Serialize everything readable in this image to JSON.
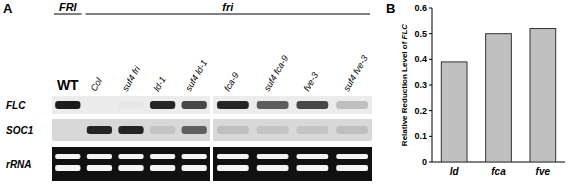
{
  "panel_a": {
    "label": "A",
    "groups": [
      {
        "label": "FRI",
        "first": 0,
        "last": 0
      },
      {
        "label": "fri",
        "first": 1,
        "last": 8
      }
    ],
    "lanes": [
      "WT",
      "Col",
      "suf4 fri",
      "ld-1",
      "suf4 ld-1",
      "fca-9",
      "suf4 fca-9",
      "fve-3",
      "suf4 fve-3"
    ],
    "rows": [
      {
        "label": "FLC",
        "values": [
          0.95,
          0,
          0.02,
          0.9,
          0.75,
          0.9,
          0.65,
          0.75,
          0.2
        ]
      },
      {
        "label": "SOC1",
        "values": [
          0,
          0.9,
          0.9,
          0.1,
          0.6,
          0.12,
          0.1,
          0.1,
          0.12
        ]
      },
      {
        "label": "rRNA",
        "values": [
          1,
          1,
          1,
          1,
          1,
          1,
          1,
          1,
          1
        ]
      }
    ]
  },
  "chart_data": {
    "type": "bar",
    "panel_label": "B",
    "y_label": "Relative Reduction Level of FLC",
    "categories": [
      "ld",
      "fca",
      "fve"
    ],
    "values": [
      0.39,
      0.5,
      0.52
    ],
    "color": "#c0c0c0",
    "ylim": [
      0,
      0.6
    ],
    "yticks": [
      0,
      0.1,
      0.2,
      0.3,
      0.4,
      0.5,
      0.6
    ]
  }
}
